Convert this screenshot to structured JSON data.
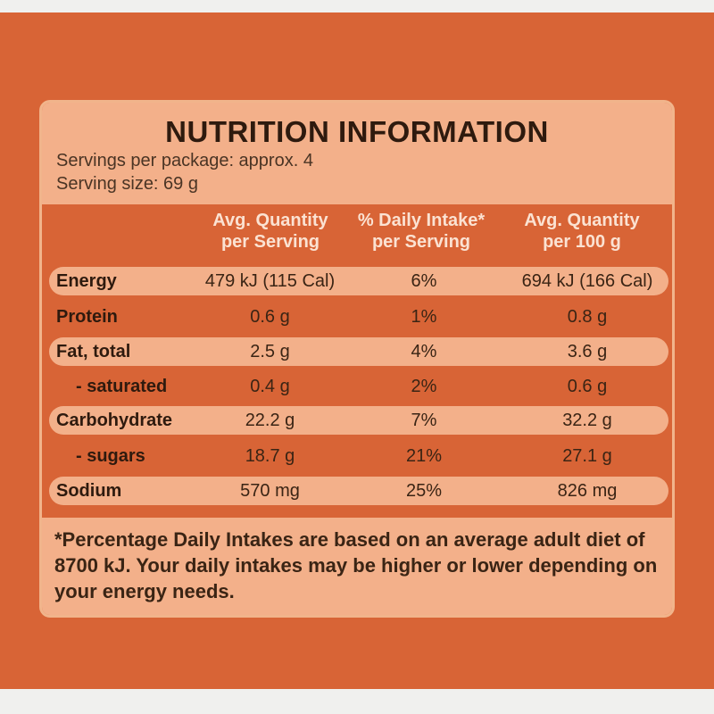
{
  "label": {
    "title": "NUTRITION INFORMATION",
    "servings_per_package": "Servings per package: approx. 4",
    "serving_size": "Serving size: 69 g",
    "columns": [
      {
        "line1": "Avg. Quantity",
        "line2": "per Serving"
      },
      {
        "line1": "% Daily Intake*",
        "line2": "per Serving"
      },
      {
        "line1": "Avg. Quantity",
        "line2": "per 100 g"
      }
    ],
    "rows": [
      {
        "name": "Energy",
        "per_serving": "479 kJ (115 Cal)",
        "daily_intake": "6%",
        "per_100g": "694 kJ (166 Cal)"
      },
      {
        "name": "Protein",
        "per_serving": "0.6 g",
        "daily_intake": "1%",
        "per_100g": "0.8 g"
      },
      {
        "name": "Fat, total",
        "per_serving": "2.5 g",
        "daily_intake": "4%",
        "per_100g": "3.6 g"
      },
      {
        "name": "- saturated",
        "per_serving": "0.4 g",
        "daily_intake": "2%",
        "per_100g": "0.6 g"
      },
      {
        "name": "Carbohydrate",
        "per_serving": "22.2 g",
        "daily_intake": "7%",
        "per_100g": "32.2 g"
      },
      {
        "name": "- sugars",
        "per_serving": "18.7 g",
        "daily_intake": "21%",
        "per_100g": "27.1 g"
      },
      {
        "name": "Sodium",
        "per_serving": "570 mg",
        "daily_intake": "25%",
        "per_100g": "826 mg"
      }
    ],
    "footnote": "*Percentage Daily Intakes are based on an average adult diet of 8700 kJ. Your daily intakes may be higher or lower depending on your energy needs."
  },
  "colors": {
    "package_orange": "#d86436",
    "panel_peach": "#f3b08a",
    "text_brown": "#3a2414",
    "header_text": "#fbe2d2"
  }
}
